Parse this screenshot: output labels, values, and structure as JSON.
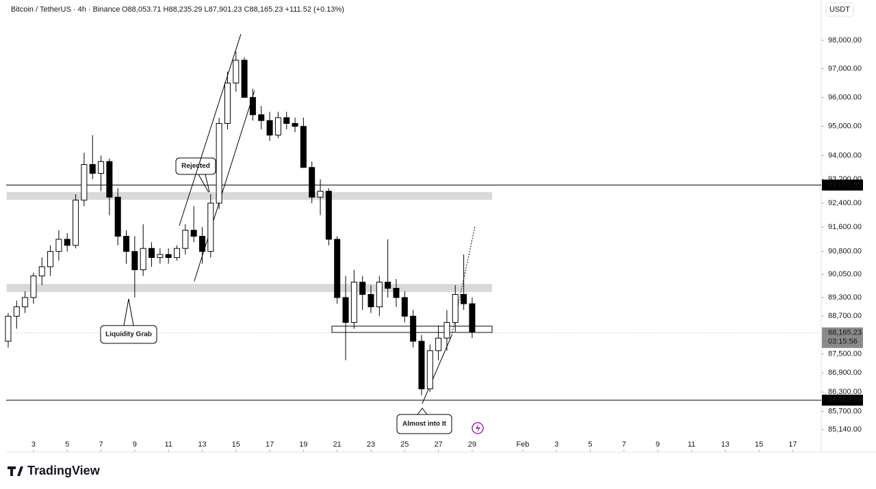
{
  "chart_data": {
    "type": "candlestick",
    "title": "Bitcoin / TetherUS · 4h · Binance",
    "ohlc_text": "O88,053.71 H88,235.29 L87,901.23 C88,165.23 +111.52 (+0.13%)",
    "currency": "USDT",
    "log_scale": true,
    "colors": {
      "up": "#ffffff",
      "down": "#000000",
      "outline": "#000000"
    },
    "x": [
      1.5,
      2,
      2.5,
      3,
      3.5,
      4,
      4.5,
      5,
      5.5,
      6,
      6.5,
      7,
      7.5,
      8,
      8.5,
      9,
      9.5,
      10,
      10.5,
      11,
      11.5,
      12,
      12.5,
      13,
      13.5,
      14,
      14.5,
      15,
      15.5,
      16,
      16.5,
      17,
      17.5,
      18,
      18.5,
      19,
      19.5,
      20,
      20.5,
      21,
      21.5,
      22,
      22.5,
      23,
      23.5,
      24,
      24.5,
      25,
      25.5,
      26,
      26.5,
      27,
      27.5,
      28,
      28.5,
      29
    ],
    "open": [
      87900,
      88700,
      89000,
      89300,
      90000,
      90300,
      90800,
      91200,
      91000,
      92500,
      93700,
      93400,
      93800,
      92600,
      91300,
      90800,
      90200,
      90900,
      90600,
      90700,
      90600,
      90900,
      91500,
      91300,
      90800,
      92400,
      95100,
      96500,
      97300,
      96000,
      95400,
      95200,
      94700,
      95300,
      95100,
      95000,
      93600,
      92600,
      92800,
      91200,
      89300,
      88500,
      89800,
      89400,
      89000,
      89800,
      89600,
      89300,
      88700,
      87900,
      86400,
      87600,
      88000,
      88500,
      89400,
      89100
    ],
    "high": [
      88800,
      89200,
      89500,
      90100,
      90600,
      91000,
      91500,
      91400,
      92700,
      94100,
      94700,
      94000,
      93900,
      92900,
      91500,
      91300,
      91700,
      91100,
      90900,
      90900,
      91000,
      91700,
      92300,
      91600,
      92700,
      95300,
      96900,
      97600,
      97400,
      96300,
      95700,
      95500,
      95500,
      95500,
      95300,
      95300,
      93800,
      93200,
      92900,
      91300,
      90000,
      90200,
      90000,
      89700,
      90000,
      91200,
      89900,
      89500,
      88900,
      88100,
      87800,
      88400,
      88900,
      89700,
      90700,
      89300
    ],
    "low": [
      87700,
      88300,
      88800,
      89100,
      89700,
      90000,
      90500,
      90800,
      90900,
      92300,
      93200,
      92800,
      92000,
      91000,
      90400,
      89300,
      90000,
      90300,
      90400,
      90400,
      90500,
      90700,
      91100,
      90400,
      90600,
      92200,
      94900,
      96200,
      96000,
      95200,
      94900,
      94500,
      94600,
      94900,
      94800,
      93600,
      92400,
      92000,
      91000,
      89100,
      87300,
      88300,
      88900,
      88800,
      88700,
      89300,
      89000,
      88500,
      87700,
      86200,
      86300,
      87300,
      87600,
      88200,
      88900,
      88000
    ],
    "close": [
      88700,
      89000,
      89300,
      90000,
      90300,
      90800,
      91200,
      91000,
      92500,
      93700,
      93400,
      93800,
      92600,
      91300,
      90800,
      90200,
      90900,
      90600,
      90700,
      90600,
      90900,
      91500,
      91300,
      90800,
      92400,
      95100,
      96500,
      97300,
      96000,
      95400,
      95200,
      94700,
      95300,
      95100,
      95000,
      93600,
      92600,
      92800,
      91200,
      89300,
      88500,
      89800,
      89400,
      89000,
      89800,
      89600,
      89300,
      88700,
      87900,
      86400,
      87600,
      88000,
      88500,
      89400,
      89100,
      88200
    ],
    "xlim": [
      1.38,
      49.69
    ],
    "ylim": [
      84930,
      99440
    ],
    "xticks": [
      3,
      5,
      7,
      9,
      11,
      13,
      15,
      17,
      19,
      21,
      23,
      25,
      27,
      29,
      {
        "value": 32,
        "label": "Feb"
      },
      {
        "value": 34,
        "label": "3"
      },
      {
        "value": 36,
        "label": "5"
      },
      {
        "value": 38,
        "label": "7"
      },
      {
        "value": 40,
        "label": "9"
      },
      {
        "value": 42,
        "label": "11"
      },
      {
        "value": 44,
        "label": "13"
      },
      {
        "value": 46,
        "label": "15"
      },
      {
        "value": 48,
        "label": "17"
      }
    ],
    "yticks": [
      {
        "value": 98000,
        "label": "98,000.00"
      },
      {
        "value": 97000,
        "label": "97,000.00"
      },
      {
        "value": 96000,
        "label": "96,000.00"
      },
      {
        "value": 95000,
        "label": "95,000.00"
      },
      {
        "value": 94000,
        "label": "94,000.00"
      },
      {
        "value": 93200,
        "label": "93,200.00"
      },
      {
        "value": 92400,
        "label": "92,400.00"
      },
      {
        "value": 91600,
        "label": "91,600.00"
      },
      {
        "value": 90800,
        "label": "90,800.00"
      },
      {
        "value": 90050,
        "label": "90,050.00"
      },
      {
        "value": 89300,
        "label": "89,300.00"
      },
      {
        "value": 88700,
        "label": "88,700.00"
      },
      {
        "value": 87500,
        "label": "87,500.00"
      },
      {
        "value": 86900,
        "label": "86,900.00"
      },
      {
        "value": 86300,
        "label": "86,300.00"
      },
      {
        "value": 85700,
        "label": "85,700.00"
      },
      {
        "value": 85140,
        "label": "85,140.00"
      }
    ],
    "hlines": [
      {
        "value": 93005.55,
        "label": "93,005.55"
      },
      {
        "value": 86048.18,
        "label": "86,048.18"
      }
    ],
    "current_price": {
      "value": 88165.23,
      "label": "88,165.23"
    },
    "countdown": "03:15:56",
    "zones": [
      {
        "xlim": [
          1.41,
          30.18
        ],
        "ylim": [
          92510,
          92770
        ],
        "color": "#d9d9d9"
      },
      {
        "xlim": [
          1.41,
          30.18
        ],
        "ylim": [
          89480,
          89740
        ],
        "color": "#d9d9d9"
      },
      {
        "xlim": [
          20.69,
          30.18
        ],
        "ylim": [
          88180,
          88380
        ],
        "outline": true
      }
    ],
    "trend_lines": [
      {
        "x": [
          12.53,
          16.1
        ],
        "y": [
          89830,
          96230
        ]
      },
      {
        "x": [
          11.64,
          15.29
        ],
        "y": [
          91650,
          98220
        ]
      },
      {
        "x": [
          26.04,
          27.79
        ],
        "y": [
          85940,
          88090
        ]
      },
      {
        "x": [
          27.79,
          29.17
        ],
        "y": [
          88090,
          91640
        ],
        "dashed": true
      }
    ],
    "annotations": [
      "Rejected",
      "Liquidity Grab",
      "Almost into It"
    ]
  },
  "brand": "TradingView"
}
